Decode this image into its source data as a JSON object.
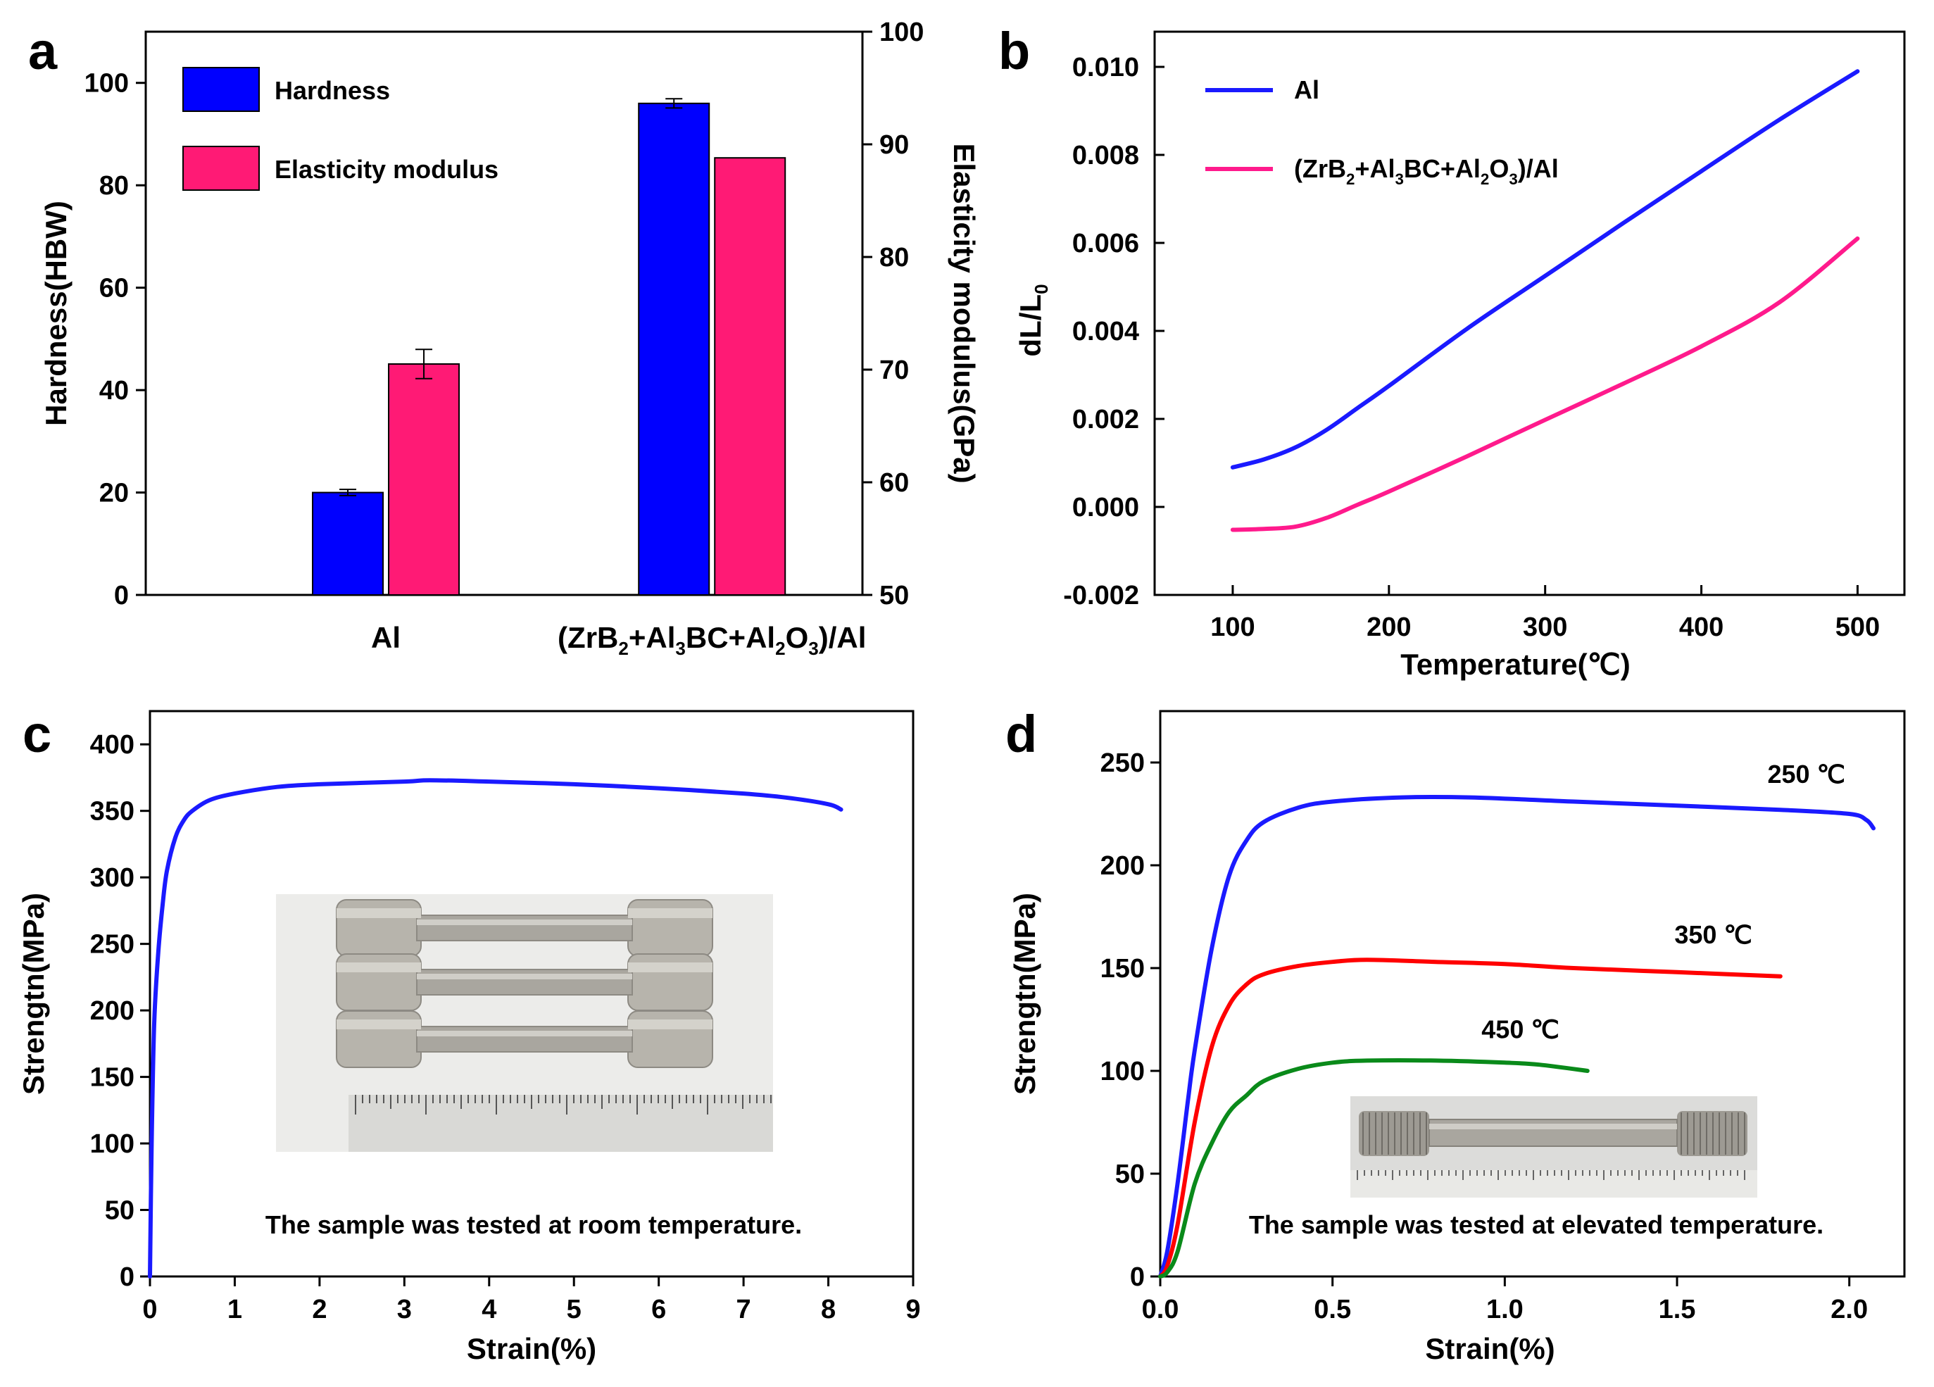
{
  "chart_data": [
    {
      "panel": "a",
      "type": "bar",
      "categories": [
        "Al",
        "(ZrB2+Al3BC+Al2O3)/Al"
      ],
      "category_display": [
        [
          {
            "t": "Al"
          }
        ],
        [
          {
            "t": "(ZrB"
          },
          {
            "t": "2",
            "sub": true
          },
          {
            "t": "+Al"
          },
          {
            "t": "3",
            "sub": true
          },
          {
            "t": "BC+Al"
          },
          {
            "t": "2",
            "sub": true
          },
          {
            "t": "O"
          },
          {
            "t": "3",
            "sub": true
          },
          {
            "t": ")/Al"
          }
        ]
      ],
      "series": [
        {
          "name": "Hardness",
          "axis": "left",
          "color": "#0000ff",
          "values": [
            20.0,
            96.0
          ],
          "errors": [
            0.6,
            0.9
          ]
        },
        {
          "name": "Elasticity modulus",
          "axis": "right",
          "color": "#ff1a75",
          "values": [
            70.5,
            88.8
          ],
          "errors": [
            1.3,
            0
          ]
        }
      ],
      "ylabel": "Hardness(HBW)",
      "ylim": [
        0,
        110
      ],
      "yticks": [
        0,
        20,
        40,
        60,
        80,
        100
      ],
      "y2label": "Elasticity modulus(GPa)",
      "y2lim": [
        50,
        100
      ],
      "y2ticks": [
        50,
        60,
        70,
        80,
        90,
        100
      ],
      "legend_position": "top-left"
    },
    {
      "panel": "b",
      "type": "line",
      "xlabel": "Temperature(℃)",
      "ylabel_parts": [
        {
          "t": "dL/L"
        },
        {
          "t": "0",
          "sub": true
        }
      ],
      "xlim": [
        50,
        530
      ],
      "xticks": [
        100,
        200,
        300,
        400,
        500
      ],
      "ylim": [
        -0.002,
        0.0108
      ],
      "yticks": [
        -0.002,
        0.0,
        0.002,
        0.004,
        0.006,
        0.008,
        0.01
      ],
      "ytick_labels": [
        "-0.002",
        "0.000",
        "0.002",
        "0.004",
        "0.006",
        "0.008",
        "0.010"
      ],
      "legend_position": "top-left",
      "series": [
        {
          "name": "Al",
          "color": "#1a1aff",
          "legend_parts": [
            {
              "t": "Al"
            }
          ],
          "x": [
            100,
            120,
            140,
            160,
            180,
            200,
            250,
            300,
            350,
            400,
            450,
            500
          ],
          "y": [
            0.0009,
            0.00108,
            0.00135,
            0.00175,
            0.00225,
            0.00275,
            0.00405,
            0.00525,
            0.00645,
            0.00763,
            0.0088,
            0.0099
          ]
        },
        {
          "name": "(ZrB2+Al3BC+Al2O3)/Al",
          "color": "#ff1a8c",
          "legend_parts": [
            {
              "t": "(ZrB"
            },
            {
              "t": "2",
              "sub": true
            },
            {
              "t": "+Al"
            },
            {
              "t": "3",
              "sub": true
            },
            {
              "t": "BC+Al"
            },
            {
              "t": "2",
              "sub": true
            },
            {
              "t": "O"
            },
            {
              "t": "3",
              "sub": true
            },
            {
              "t": ")/Al"
            }
          ],
          "x": [
            100,
            120,
            140,
            160,
            180,
            200,
            250,
            300,
            350,
            400,
            450,
            500
          ],
          "y": [
            -0.00052,
            -0.0005,
            -0.00045,
            -0.00025,
            5e-05,
            0.00035,
            0.00115,
            0.00198,
            0.0028,
            0.00365,
            0.00465,
            0.0061
          ]
        }
      ]
    },
    {
      "panel": "c",
      "type": "line",
      "xlabel": "Strain(%)",
      "ylabel": "Strengtn(MPa)",
      "xlim": [
        0,
        9
      ],
      "xticks": [
        0,
        1,
        2,
        3,
        4,
        5,
        6,
        7,
        8,
        9
      ],
      "ylim": [
        0,
        425
      ],
      "yticks": [
        0,
        50,
        100,
        150,
        200,
        250,
        300,
        350,
        400
      ],
      "annotation": "The sample was tested at room temperature.",
      "series": [
        {
          "color": "#1a1aff",
          "x": [
            0,
            0.02,
            0.05,
            0.1,
            0.15,
            0.2,
            0.3,
            0.4,
            0.5,
            0.7,
            1.0,
            1.5,
            2.0,
            3.0,
            3.3,
            4.0,
            5.0,
            6.0,
            7.0,
            7.5,
            8.0,
            8.15
          ],
          "y": [
            0,
            100,
            190,
            245,
            280,
            305,
            330,
            343,
            350,
            358,
            363,
            368,
            370,
            372,
            373,
            372,
            370,
            367,
            363,
            360,
            355,
            351
          ]
        }
      ]
    },
    {
      "panel": "d",
      "type": "line",
      "xlabel": "Strain(%)",
      "ylabel": "Strengtn(MPa)",
      "xlim": [
        0,
        2.16
      ],
      "xticks": [
        0.0,
        0.5,
        1.0,
        1.5,
        2.0
      ],
      "xtick_labels": [
        "0.0",
        "0.5",
        "1.0",
        "1.5",
        "2.0"
      ],
      "ylim": [
        0,
        275
      ],
      "yticks": [
        0,
        50,
        100,
        150,
        200,
        250
      ],
      "annotation": "The sample was tested at elevated temperature.",
      "series": [
        {
          "name": "250 ℃",
          "color": "#1a1aff",
          "x": [
            0,
            0.02,
            0.05,
            0.08,
            0.1,
            0.15,
            0.2,
            0.25,
            0.3,
            0.4,
            0.5,
            0.7,
            0.9,
            1.2,
            1.5,
            1.8,
            2.0,
            2.05,
            2.07
          ],
          "y": [
            0,
            12,
            45,
            85,
            110,
            160,
            195,
            212,
            221,
            228,
            231,
            233,
            233,
            231,
            229,
            227,
            225,
            222,
            218
          ]
        },
        {
          "name": "350 ℃",
          "color": "#ff0000",
          "x": [
            0,
            0.02,
            0.05,
            0.1,
            0.15,
            0.2,
            0.25,
            0.3,
            0.4,
            0.5,
            0.6,
            0.8,
            1.0,
            1.2,
            1.5,
            1.8
          ],
          "y": [
            0,
            5,
            25,
            75,
            112,
            132,
            142,
            147,
            151,
            153,
            154,
            153,
            152,
            150,
            148,
            146
          ]
        },
        {
          "name": "450 ℃",
          "color": "#0a8a1a",
          "x": [
            0,
            0.02,
            0.05,
            0.1,
            0.15,
            0.2,
            0.25,
            0.3,
            0.4,
            0.5,
            0.6,
            0.8,
            1.0,
            1.1,
            1.24
          ],
          "y": [
            0,
            2,
            12,
            45,
            65,
            80,
            88,
            95,
            101,
            104,
            105,
            105,
            104,
            103,
            100
          ]
        }
      ]
    }
  ]
}
